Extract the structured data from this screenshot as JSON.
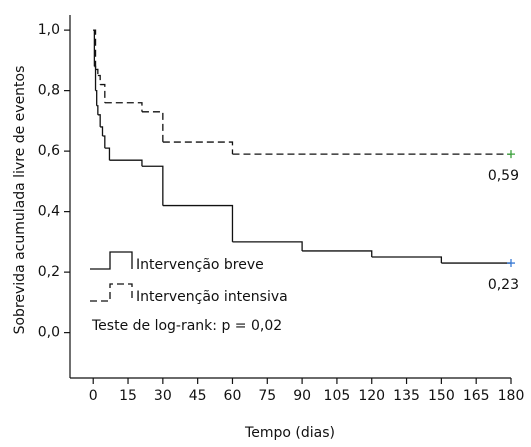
{
  "chart_data": {
    "type": "step",
    "x_label": "Tempo (dias)",
    "y_label": "Sobrevida acumulada livre de eventos",
    "xlim": [
      -10,
      180
    ],
    "ylim": [
      -0.15,
      1.05
    ],
    "xticks": [
      0,
      15,
      30,
      45,
      60,
      75,
      90,
      105,
      120,
      135,
      150,
      165,
      180
    ],
    "yticks": [
      {
        "value": 0,
        "label": "0,0"
      },
      {
        "value": 0.2,
        "label": "0,2"
      },
      {
        "value": 0.4,
        "label": "0,4"
      },
      {
        "value": 0.6,
        "label": "0,6"
      },
      {
        "value": 0.8,
        "label": "0,8"
      },
      {
        "value": 1.0,
        "label": "1,0"
      }
    ],
    "series": [
      {
        "name": "Intervenção breve",
        "color": "#111111",
        "dashed": false,
        "censor_color": "#3a7bd5",
        "end_label": "0,23",
        "x": [
          0,
          0.5,
          1,
          1.5,
          2,
          3,
          4,
          5,
          7,
          21,
          30,
          60,
          90,
          120,
          150,
          180
        ],
        "values": [
          1.0,
          0.88,
          0.8,
          0.75,
          0.72,
          0.68,
          0.65,
          0.61,
          0.57,
          0.55,
          0.42,
          0.3,
          0.27,
          0.25,
          0.23,
          0.23
        ]
      },
      {
        "name": "Intervenção intensiva",
        "color": "#111111",
        "dashed": true,
        "censor_color": "#3aa03a",
        "end_label": "0,59",
        "x": [
          0,
          1,
          2,
          3,
          5,
          21,
          30,
          60,
          180
        ],
        "values": [
          1.0,
          0.87,
          0.85,
          0.82,
          0.76,
          0.73,
          0.63,
          0.59,
          0.59
        ]
      }
    ],
    "annotation": "Teste de log-rank: p = 0,02"
  }
}
